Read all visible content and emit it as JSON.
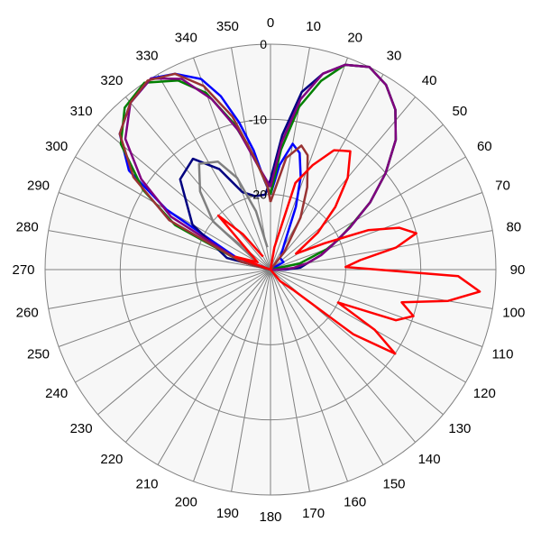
{
  "chart_data": {
    "type": "polar-line",
    "title": "",
    "angle_unit": "degrees",
    "angle_zero": "top",
    "angle_direction": "clockwise",
    "angle_ticks": [
      0,
      10,
      20,
      30,
      40,
      50,
      60,
      70,
      80,
      90,
      100,
      110,
      120,
      130,
      140,
      150,
      160,
      170,
      180,
      190,
      200,
      210,
      220,
      230,
      240,
      250,
      260,
      270,
      280,
      290,
      300,
      310,
      320,
      330,
      340,
      350
    ],
    "angle_tick_labels": [
      "0",
      "10",
      "20",
      "30",
      "40",
      "50",
      "60",
      "70",
      "80",
      "90",
      "100",
      "110",
      "120",
      "130",
      "140",
      "150",
      "160",
      "170",
      "180",
      "190",
      "200",
      "210",
      "220",
      "230",
      "240",
      "250",
      "260",
      "270",
      "280",
      "290",
      "300",
      "310",
      "320",
      "330",
      "340",
      "350"
    ],
    "radial_range": [
      -30,
      0
    ],
    "radial_rings": [
      -30,
      -20,
      -10,
      0
    ],
    "radial_tick_labels": [
      {
        "value": 0,
        "label": "0"
      },
      {
        "value": -10,
        "label": "-10"
      },
      {
        "value": -20,
        "label": "-20"
      }
    ],
    "grid": true,
    "legend": "none",
    "series": [
      {
        "color": "#0000ff",
        "points": [
          [
            0,
            -20
          ],
          [
            5,
            -16
          ],
          [
            10,
            -13
          ],
          [
            14,
            -14
          ],
          [
            18,
            -17
          ],
          [
            22,
            -21
          ],
          [
            28,
            -26
          ],
          [
            40,
            -28
          ],
          [
            60,
            -28
          ],
          [
            90,
            -30
          ],
          [
            180,
            -30
          ],
          [
            270,
            -30
          ],
          [
            290,
            -25
          ],
          [
            300,
            -14
          ],
          [
            305,
            -7
          ],
          [
            312,
            -3
          ],
          [
            320,
            -1
          ],
          [
            328,
            0
          ],
          [
            334,
            -1
          ],
          [
            340,
            -3
          ],
          [
            344,
            -6
          ],
          [
            348,
            -10
          ],
          [
            352,
            -14
          ],
          [
            356,
            -18
          ],
          [
            360,
            -20
          ]
        ]
      },
      {
        "color": "#000080",
        "points": [
          [
            0,
            -18
          ],
          [
            5,
            -12
          ],
          [
            10,
            -6
          ],
          [
            15,
            -3
          ],
          [
            20,
            -1
          ],
          [
            26,
            0
          ],
          [
            32,
            -1
          ],
          [
            38,
            -3
          ],
          [
            44,
            -6
          ],
          [
            50,
            -10
          ],
          [
            56,
            -14
          ],
          [
            62,
            -18
          ],
          [
            68,
            -21
          ],
          [
            74,
            -23
          ],
          [
            80,
            -25
          ],
          [
            86,
            -26
          ],
          [
            90,
            -28
          ],
          [
            180,
            -30
          ],
          [
            270,
            -30
          ],
          [
            285,
            -24
          ],
          [
            300,
            -18
          ],
          [
            315,
            -13
          ],
          [
            325,
            -12
          ],
          [
            333,
            -15
          ],
          [
            340,
            -19
          ],
          [
            348,
            -20
          ],
          [
            356,
            -20
          ],
          [
            360,
            -18
          ]
        ]
      },
      {
        "color": "#008000",
        "points": [
          [
            0,
            -20
          ],
          [
            5,
            -14
          ],
          [
            10,
            -8
          ],
          [
            15,
            -4
          ],
          [
            20,
            -1
          ],
          [
            26,
            0
          ],
          [
            32,
            -1
          ],
          [
            38,
            -3
          ],
          [
            44,
            -6
          ],
          [
            50,
            -10
          ],
          [
            56,
            -14
          ],
          [
            60,
            -17
          ],
          [
            66,
            -20
          ],
          [
            70,
            -22
          ],
          [
            78,
            -26
          ],
          [
            90,
            -30
          ],
          [
            180,
            -30
          ],
          [
            270,
            -30
          ],
          [
            285,
            -26
          ],
          [
            295,
            -16
          ],
          [
            302,
            -10
          ],
          [
            310,
            -4
          ],
          [
            318,
            -1
          ],
          [
            326,
            0
          ],
          [
            334,
            -2
          ],
          [
            340,
            -5
          ],
          [
            346,
            -10
          ],
          [
            352,
            -15
          ],
          [
            358,
            -19
          ],
          [
            360,
            -20
          ]
        ]
      },
      {
        "color": "#800080",
        "points": [
          [
            0,
            -19
          ],
          [
            5,
            -13
          ],
          [
            10,
            -7
          ],
          [
            15,
            -3
          ],
          [
            20,
            -1
          ],
          [
            26,
            0
          ],
          [
            32,
            -1
          ],
          [
            38,
            -3
          ],
          [
            44,
            -6
          ],
          [
            50,
            -10
          ],
          [
            56,
            -14
          ],
          [
            62,
            -18
          ],
          [
            68,
            -21
          ],
          [
            74,
            -23
          ],
          [
            80,
            -25
          ],
          [
            86,
            -27
          ],
          [
            90,
            -29
          ],
          [
            180,
            -30
          ],
          [
            270,
            -30
          ],
          [
            285,
            -26
          ],
          [
            298,
            -15
          ],
          [
            305,
            -9
          ],
          [
            312,
            -4
          ],
          [
            320,
            -1
          ],
          [
            328,
            0
          ],
          [
            335,
            -2
          ],
          [
            341,
            -6
          ],
          [
            347,
            -11
          ],
          [
            353,
            -16
          ],
          [
            360,
            -19
          ]
        ]
      },
      {
        "color": "#993333",
        "points": [
          [
            0,
            -21
          ],
          [
            8,
            -15
          ],
          [
            14,
            -13
          ],
          [
            18,
            -14
          ],
          [
            24,
            -18
          ],
          [
            30,
            -22
          ],
          [
            38,
            -27
          ],
          [
            90,
            -30
          ],
          [
            180,
            -30
          ],
          [
            270,
            -30
          ],
          [
            285,
            -26
          ],
          [
            296,
            -15
          ],
          [
            304,
            -8
          ],
          [
            312,
            -3
          ],
          [
            320,
            -1
          ],
          [
            327,
            0
          ],
          [
            334,
            -1
          ],
          [
            340,
            -4
          ],
          [
            346,
            -9
          ],
          [
            352,
            -15
          ],
          [
            358,
            -19
          ],
          [
            360,
            -21
          ]
        ]
      },
      {
        "color": "#808080",
        "points": [
          [
            300,
            -28
          ],
          [
            310,
            -20
          ],
          [
            318,
            -16
          ],
          [
            326,
            -13
          ],
          [
            334,
            -14
          ],
          [
            340,
            -17
          ],
          [
            346,
            -22
          ],
          [
            352,
            -27
          ]
        ]
      },
      {
        "color": "#ff0000",
        "points": [
          [
            0,
            -30
          ],
          [
            10,
            -27
          ],
          [
            16,
            -18
          ],
          [
            22,
            -15
          ],
          [
            28,
            -12
          ],
          [
            34,
            -11
          ],
          [
            40,
            -14
          ],
          [
            46,
            -18
          ],
          [
            52,
            -22
          ],
          [
            58,
            -26
          ],
          [
            64,
            -22
          ],
          [
            68,
            -16
          ],
          [
            72,
            -12
          ],
          [
            76,
            -10
          ],
          [
            80,
            -13
          ],
          [
            84,
            -18
          ],
          [
            88,
            -20
          ],
          [
            92,
            -5
          ],
          [
            96,
            -2
          ],
          [
            100,
            -6
          ],
          [
            104,
            -12
          ],
          [
            108,
            -10
          ],
          [
            112,
            -12
          ],
          [
            116,
            -20
          ],
          [
            120,
            -14
          ],
          [
            124,
            -10
          ],
          [
            128,
            -16
          ],
          [
            132,
            -26
          ],
          [
            140,
            -28
          ],
          [
            180,
            -30
          ],
          [
            270,
            -30
          ],
          [
            290,
            -25
          ],
          [
            300,
            -28
          ],
          [
            310,
            -26
          ],
          [
            316,
            -20
          ],
          [
            322,
            -24
          ],
          [
            330,
            -28
          ]
        ]
      }
    ]
  }
}
